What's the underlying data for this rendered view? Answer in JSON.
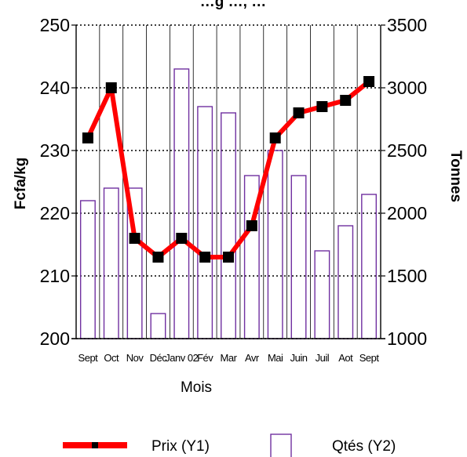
{
  "chart_data": {
    "type": "bar",
    "title": "…g …, …",
    "xlabel": "Mois",
    "ylabel_left": "Fcfa/kg",
    "ylabel_right": "Tonnes",
    "categories": [
      "Sept",
      "Oct",
      "Nov",
      "Déc",
      "Janv 02",
      "Fév",
      "Mar",
      "Avr",
      "Mai",
      "Juin",
      "Juil",
      "Aot",
      "Sept"
    ],
    "y1_ticks": [
      "250",
      "240",
      "230",
      "220",
      "210",
      "200"
    ],
    "y2_ticks": [
      "3500",
      "3000",
      "2500",
      "2000",
      "1500",
      "1000"
    ],
    "y1_lim": [
      200,
      250
    ],
    "y2_lim": [
      1000,
      3500
    ],
    "grid": "horizontal dotted",
    "legend_position": "bottom",
    "series": [
      {
        "name": "Prix (Y1)",
        "axis": "left",
        "kind": "line",
        "color": "#ff0000",
        "marker": "#000000",
        "values": [
          232,
          240,
          216,
          213,
          216,
          213,
          213,
          218,
          232,
          236,
          237,
          238,
          241
        ]
      },
      {
        "name": "Qtés (Y2)",
        "axis": "right",
        "kind": "bar",
        "color": "#7030a0",
        "values": [
          2100,
          2200,
          2200,
          1200,
          3150,
          2850,
          2800,
          2300,
          2500,
          2300,
          1700,
          1900,
          2150
        ]
      }
    ]
  }
}
